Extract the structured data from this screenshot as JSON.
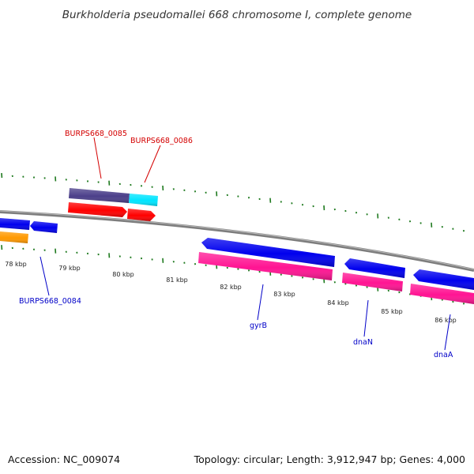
{
  "title": "Burkholderia pseudomallei 668 chromosome I, complete genome",
  "footer": {
    "accession": "Accession: NC_009074",
    "summary": "Topology: circular; Length: 3,912,947 bp; Genes: 4,000"
  },
  "scale_labels": [
    "78 kbp",
    "79 kbp",
    "80 kbp",
    "81 kbp",
    "82 kbp",
    "83 kbp",
    "84 kbp",
    "85 kbp",
    "86 kbp"
  ],
  "gene_labels": [
    {
      "id": "burps668_0085",
      "text": "BURPS668_0085",
      "color": "#d40000"
    },
    {
      "id": "burps668_0086",
      "text": "BURPS668_0086",
      "color": "#d40000"
    },
    {
      "id": "burps668_0084",
      "text": "BURPS668_0084",
      "color": "#0000c8"
    },
    {
      "id": "gyrb",
      "text": "gyrB",
      "color": "#0000c8"
    },
    {
      "id": "dnan",
      "text": "dnaN",
      "color": "#0000c8"
    },
    {
      "id": "dnaa",
      "text": "dnaA",
      "color": "#0000c8"
    }
  ],
  "colors": {
    "backbone": "#7a7a7a",
    "tick": "#1f7a1f",
    "cds_forward": "#ff0000",
    "cds_reverse": "#0000ee",
    "gene_magenta": "#ff1493",
    "gene_purple": "#4b3f8a",
    "gene_cyan": "#00e5ff",
    "gene_orange": "#ff9900"
  }
}
